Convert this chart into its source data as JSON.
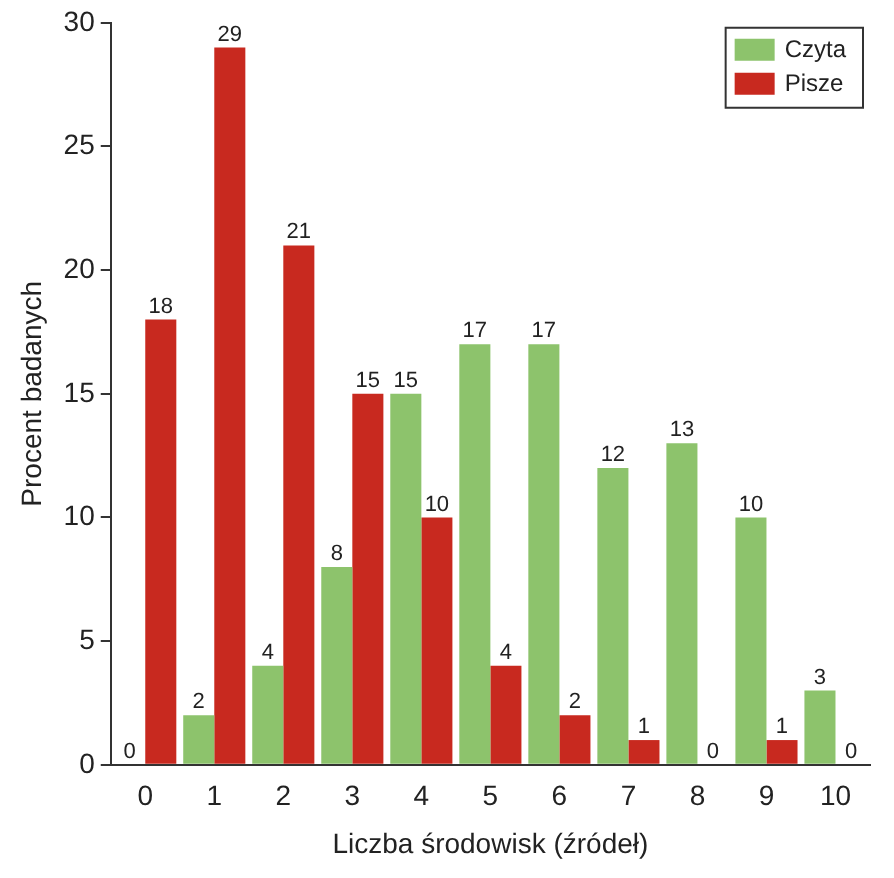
{
  "chart_data": {
    "type": "bar",
    "xlabel": "Liczba środowisk (źródeł)",
    "ylabel": "Procent badanych",
    "categories": [
      "0",
      "1",
      "2",
      "3",
      "4",
      "5",
      "6",
      "7",
      "8",
      "9",
      "10"
    ],
    "series": [
      {
        "name": "Czyta",
        "color": "#8dc36c",
        "values": [
          0,
          2,
          4,
          8,
          15,
          17,
          17,
          12,
          13,
          10,
          3
        ]
      },
      {
        "name": "Pisze",
        "color": "#c8291f",
        "values": [
          18,
          29,
          21,
          15,
          10,
          4,
          2,
          1,
          0,
          1,
          0
        ]
      }
    ],
    "ylim": [
      0,
      30
    ],
    "yticks": [
      0,
      5,
      10,
      15,
      20,
      25,
      30
    ],
    "grid": false,
    "legend": "top right",
    "data_labels": true
  }
}
